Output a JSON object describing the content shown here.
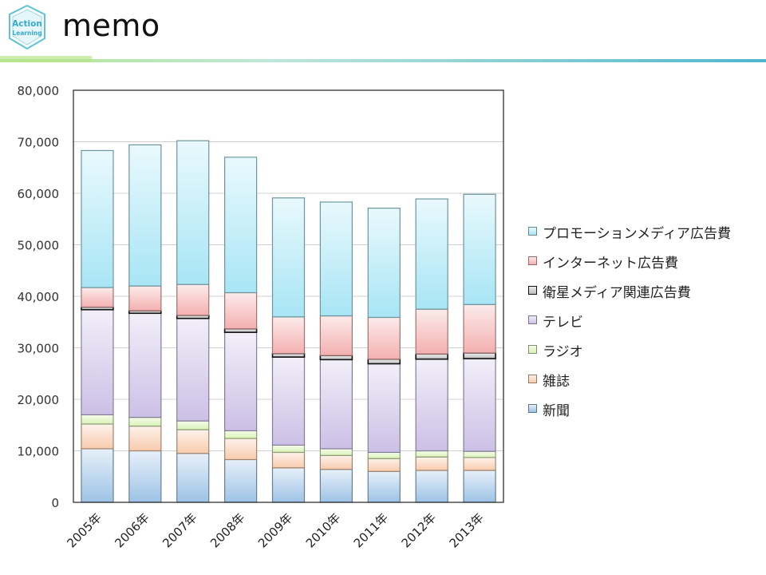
{
  "header": {
    "title": "memo",
    "logo_text_line1": "Action",
    "logo_text_line2": "Learning"
  },
  "chart_data": {
    "type": "bar",
    "stacked": true,
    "categories": [
      "2005年",
      "2006年",
      "2007年",
      "2008年",
      "2009年",
      "2010年",
      "2011年",
      "2012年",
      "2013年"
    ],
    "ylim": [
      0,
      80000
    ],
    "yticks": [
      0,
      10000,
      20000,
      30000,
      40000,
      50000,
      60000,
      70000,
      80000
    ],
    "ytick_labels": [
      "0",
      "10,000",
      "20,000",
      "30,000",
      "40,000",
      "50,000",
      "60,000",
      "70,000",
      "80,000"
    ],
    "grid": true,
    "legend_position": "right",
    "series": [
      {
        "name": "新聞",
        "color": "#9dc3e6",
        "values": [
          10400,
          10000,
          9500,
          8300,
          6700,
          6400,
          6000,
          6200,
          6200
        ]
      },
      {
        "name": "雑誌",
        "color": "#f8cbad",
        "values": [
          4800,
          4800,
          4600,
          4100,
          3000,
          2700,
          2500,
          2600,
          2500
        ]
      },
      {
        "name": "ラジオ",
        "color": "#d9f2b6",
        "values": [
          1800,
          1700,
          1700,
          1500,
          1400,
          1300,
          1200,
          1200,
          1200
        ]
      },
      {
        "name": "テレビ",
        "color": "#ccc0e6",
        "values": [
          20400,
          20200,
          19900,
          19100,
          17100,
          17300,
          17200,
          17800,
          18000
        ]
      },
      {
        "name": "衛星メディア関連広告費",
        "color": "#bdbdbd",
        "values": [
          500,
          500,
          600,
          700,
          700,
          800,
          900,
          1000,
          1100
        ]
      },
      {
        "name": "インターネット広告費",
        "color": "#f4b0b0",
        "values": [
          3800,
          4800,
          6000,
          7000,
          7100,
          7700,
          8100,
          8700,
          9400
        ]
      },
      {
        "name": "プロモーションメディア広告費",
        "color": "#a8e5f5",
        "values": [
          26600,
          27400,
          27900,
          26300,
          23100,
          22100,
          21200,
          21400,
          21400
        ]
      }
    ]
  }
}
